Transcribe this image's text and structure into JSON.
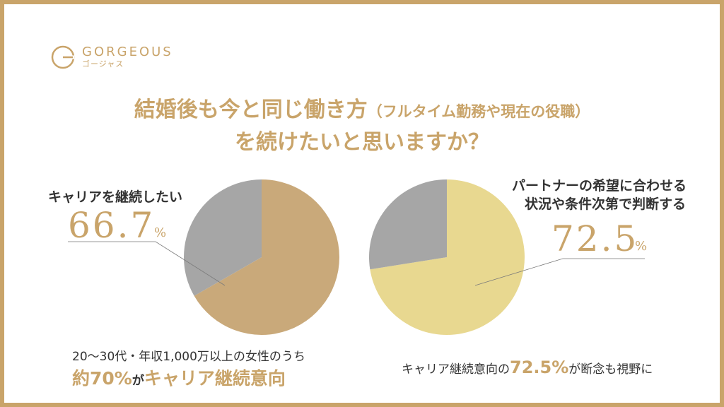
{
  "logo": {
    "name": "GORGEOUS",
    "name_kana": "ゴージャス"
  },
  "title": {
    "line1_main": "結婚後も今と同じ働き方",
    "line1_paren": "（フルタイム勤務や現在の役職）",
    "line2": "を続けたいと思いますか？"
  },
  "left": {
    "label": "キャリアを継続したい",
    "percent_value": "66.7",
    "percent_sign": "%",
    "caption_line1": "20〜30代・年収1,000万以上の女性のうち",
    "caption_line2_a": "約70%",
    "caption_line2_b": "が",
    "caption_line2_c": "キャリア継続意向"
  },
  "right": {
    "label_line1": "パートナーの希望に合わせる",
    "label_line2": "状況や条件次第で判断する",
    "percent_value": "72.5",
    "percent_sign": "%",
    "caption_a": "キャリア継続意向の",
    "caption_b": "72.5%",
    "caption_c": "が断念も視野に"
  },
  "chart_data": [
    {
      "type": "pie",
      "slices": [
        {
          "label": "キャリアを継続したい",
          "value": 66.7,
          "color": "#c9a97a"
        },
        {
          "label": "",
          "value": 33.3,
          "color": "#a6a6a6"
        }
      ]
    },
    {
      "type": "pie",
      "slices": [
        {
          "label": "パートナーの希望に合わせる状況や条件次第で判断する",
          "value": 72.5,
          "color": "#e8d890"
        },
        {
          "label": "",
          "value": 27.5,
          "color": "#a6a6a6"
        }
      ]
    }
  ]
}
